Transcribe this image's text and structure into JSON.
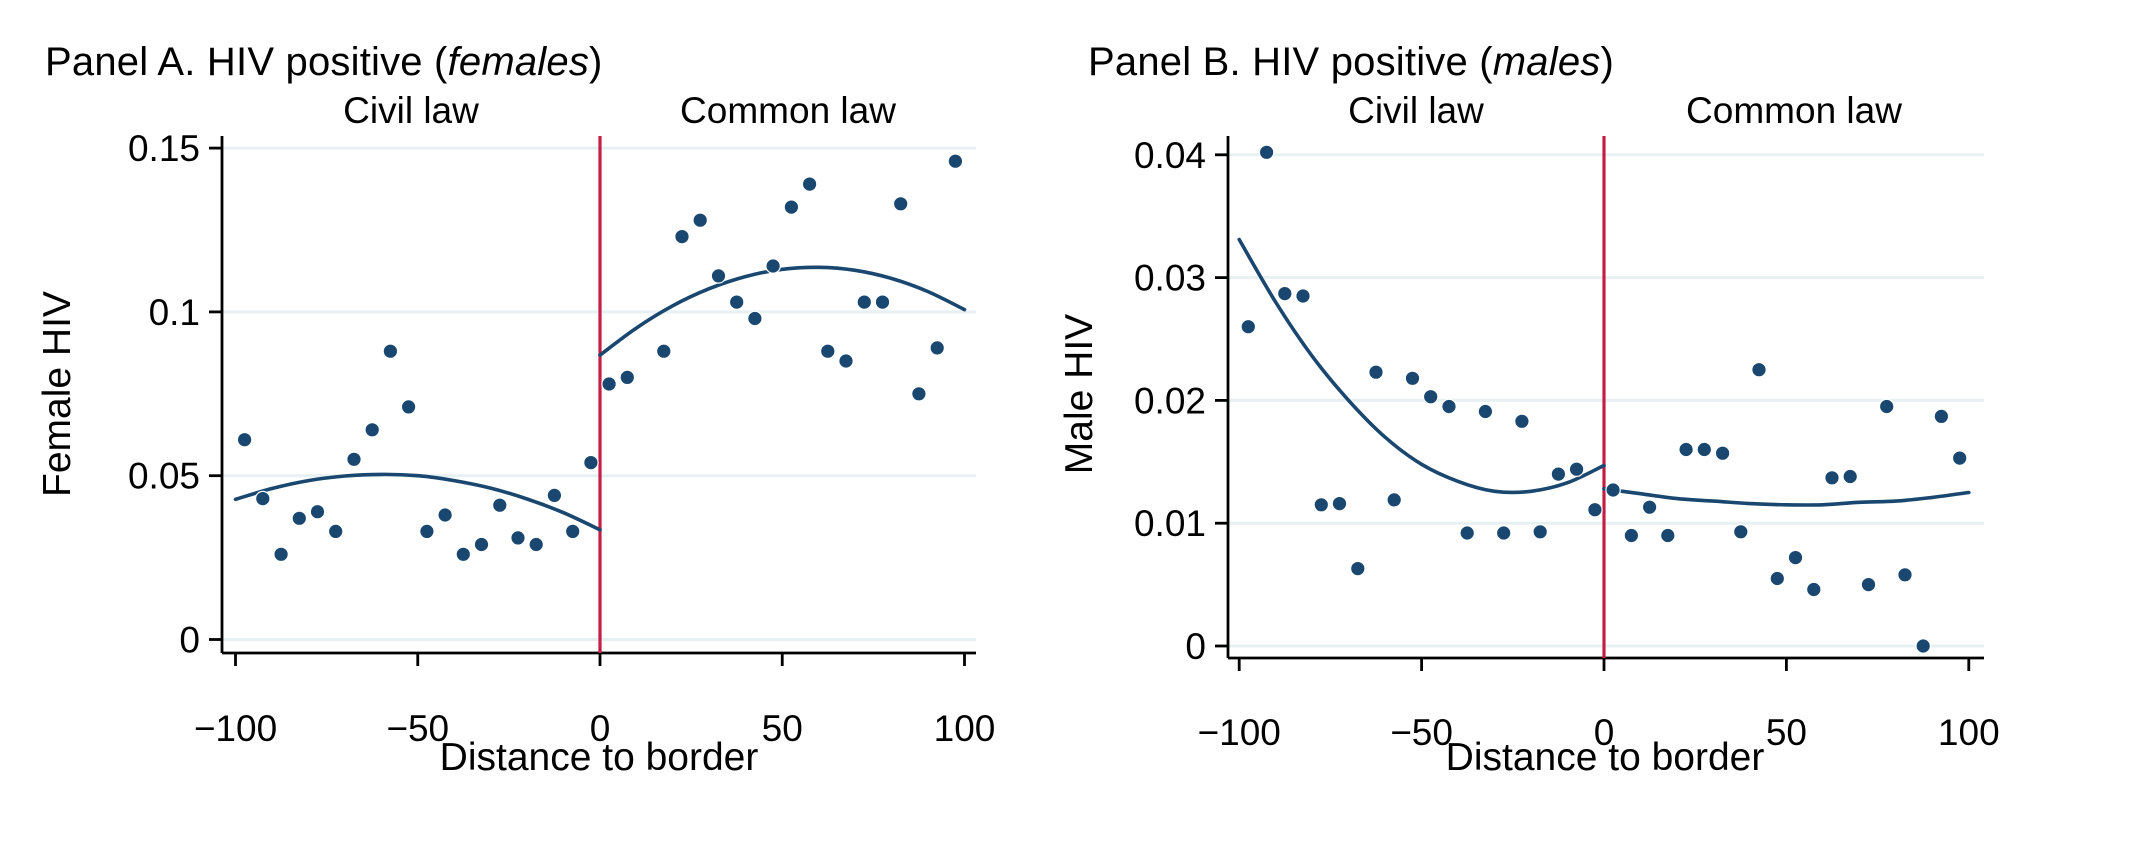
{
  "figure": {
    "background": "#ffffff",
    "colors": {
      "point": "#1a476f",
      "fit_line": "#1a476f",
      "cutoff_line": "#c51e45",
      "gridline": "#e8f1f2",
      "axis": "#000000",
      "text": "#000000"
    }
  },
  "chart_data": [
    {
      "type": "scatter",
      "title": "Panel A. HIV positive (females)",
      "title_prefix": "Panel A. HIV positive (",
      "title_italic": "females",
      "title_suffix": ")",
      "region_labels": [
        "Civil law",
        "Common law"
      ],
      "xlabel": "Distance to border",
      "ylabel": "Female HIV",
      "xlim": [
        -103.6,
        103.2
      ],
      "ylim": [
        -0.0041,
        0.1536
      ],
      "xticks": [
        -100,
        -50,
        0,
        50,
        100
      ],
      "xtick_labels": [
        "−100",
        "−50",
        "0",
        "50",
        "100"
      ],
      "yticks": [
        0,
        0.05,
        0.1,
        0.15
      ],
      "ytick_labels": [
        "0",
        "0.05",
        "0.1",
        "0.15"
      ],
      "grid": "horizontal",
      "legend": "none",
      "cutoff_x": 0,
      "series": [
        {
          "name": "Civil law bin means",
          "type": "scatter",
          "points": [
            [
              -97.5,
              0.061
            ],
            [
              -92.5,
              0.043
            ],
            [
              -87.5,
              0.026
            ],
            [
              -82.5,
              0.037
            ],
            [
              -77.5,
              0.039
            ],
            [
              -72.5,
              0.033
            ],
            [
              -67.5,
              0.055
            ],
            [
              -62.5,
              0.064
            ],
            [
              -57.5,
              0.088
            ],
            [
              -52.5,
              0.071
            ],
            [
              -47.5,
              0.033
            ],
            [
              -42.5,
              0.038
            ],
            [
              -37.5,
              0.026
            ],
            [
              -32.5,
              0.029
            ],
            [
              -27.5,
              0.041
            ],
            [
              -22.5,
              0.031
            ],
            [
              -17.5,
              0.029
            ],
            [
              -12.5,
              0.044
            ],
            [
              -7.5,
              0.033
            ],
            [
              -2.5,
              0.054
            ]
          ]
        },
        {
          "name": "Common law bin means",
          "type": "scatter",
          "points": [
            [
              2.5,
              0.078
            ],
            [
              7.5,
              0.08
            ],
            [
              17.5,
              0.088
            ],
            [
              22.5,
              0.123
            ],
            [
              27.5,
              0.128
            ],
            [
              32.5,
              0.111
            ],
            [
              37.5,
              0.103
            ],
            [
              42.5,
              0.098
            ],
            [
              47.5,
              0.114
            ],
            [
              52.5,
              0.132
            ],
            [
              57.5,
              0.139
            ],
            [
              62.5,
              0.088
            ],
            [
              67.5,
              0.085
            ],
            [
              72.5,
              0.103
            ],
            [
              77.5,
              0.103
            ],
            [
              82.5,
              0.133
            ],
            [
              87.5,
              0.075
            ],
            [
              92.5,
              0.089
            ],
            [
              97.5,
              0.146
            ]
          ]
        },
        {
          "name": "Civil law quadratic fit",
          "type": "line",
          "points": [
            [
              -100,
              0.0428
            ],
            [
              -90,
              0.0461
            ],
            [
              -80,
              0.0485
            ],
            [
              -70,
              0.0499
            ],
            [
              -60,
              0.0504
            ],
            [
              -50,
              0.05
            ],
            [
              -40,
              0.0485
            ],
            [
              -30,
              0.0462
            ],
            [
              -20,
              0.0429
            ],
            [
              -10,
              0.0387
            ],
            [
              0,
              0.0335
            ]
          ]
        },
        {
          "name": "Common law quadratic fit",
          "type": "line",
          "points": [
            [
              0,
              0.0868
            ],
            [
              10,
              0.0951
            ],
            [
              20,
              0.1019
            ],
            [
              30,
              0.1071
            ],
            [
              40,
              0.1108
            ],
            [
              50,
              0.113
            ],
            [
              60,
              0.1136
            ],
            [
              70,
              0.1127
            ],
            [
              80,
              0.1102
            ],
            [
              90,
              0.1062
            ],
            [
              100,
              0.1007
            ]
          ]
        }
      ]
    },
    {
      "type": "scatter",
      "title": "Panel B. HIV positive (males)",
      "title_prefix": "Panel B. HIV positive (",
      "title_italic": "males",
      "title_suffix": ")",
      "region_labels": [
        "Civil law",
        "Common law"
      ],
      "xlabel": "Distance to border",
      "ylabel": "Male HIV",
      "xlim": [
        -103.1,
        103.6
      ],
      "ylim": [
        -0.001,
        0.0416
      ],
      "xticks": [
        -100,
        -50,
        0,
        50,
        100
      ],
      "xtick_labels": [
        "−100",
        "−50",
        "0",
        "50",
        "100"
      ],
      "yticks": [
        0,
        0.01,
        0.02,
        0.03,
        0.04
      ],
      "ytick_labels": [
        "0",
        "0.01",
        "0.02",
        "0.03",
        "0.04"
      ],
      "grid": "horizontal",
      "legend": "none",
      "cutoff_x": 0,
      "series": [
        {
          "name": "Civil law bin means",
          "type": "scatter",
          "points": [
            [
              -97.5,
              0.026
            ],
            [
              -92.5,
              0.0402
            ],
            [
              -87.5,
              0.0287
            ],
            [
              -82.5,
              0.0285
            ],
            [
              -77.5,
              0.0115
            ],
            [
              -72.5,
              0.0116
            ],
            [
              -67.5,
              0.0063
            ],
            [
              -62.5,
              0.0223
            ],
            [
              -57.5,
              0.0119
            ],
            [
              -52.5,
              0.0218
            ],
            [
              -47.5,
              0.0203
            ],
            [
              -42.5,
              0.0195
            ],
            [
              -37.5,
              0.0092
            ],
            [
              -32.5,
              0.0191
            ],
            [
              -27.5,
              0.0092
            ],
            [
              -22.5,
              0.0183
            ],
            [
              -17.5,
              0.0093
            ],
            [
              -12.5,
              0.014
            ],
            [
              -7.5,
              0.0144
            ],
            [
              -2.5,
              0.0111
            ]
          ]
        },
        {
          "name": "Common law bin means",
          "type": "scatter",
          "points": [
            [
              2.5,
              0.0127
            ],
            [
              7.5,
              0.009
            ],
            [
              12.5,
              0.0113
            ],
            [
              17.5,
              0.009
            ],
            [
              22.5,
              0.016
            ],
            [
              27.5,
              0.016
            ],
            [
              32.5,
              0.0157
            ],
            [
              37.5,
              0.0093
            ],
            [
              42.5,
              0.0225
            ],
            [
              47.5,
              0.0055
            ],
            [
              52.5,
              0.0072
            ],
            [
              57.5,
              0.0046
            ],
            [
              62.5,
              0.0137
            ],
            [
              67.5,
              0.0138
            ],
            [
              72.5,
              0.005
            ],
            [
              77.5,
              0.0195
            ],
            [
              82.5,
              0.0058
            ],
            [
              87.5,
              0.0
            ],
            [
              92.5,
              0.0187
            ],
            [
              97.5,
              0.0153
            ]
          ]
        },
        {
          "name": "Civil law quadratic fit",
          "type": "line",
          "points": [
            [
              -100,
              0.0331
            ],
            [
              -90,
              0.028
            ],
            [
              -80,
              0.0236
            ],
            [
              -70,
              0.02
            ],
            [
              -60,
              0.017
            ],
            [
              -50,
              0.0148
            ],
            [
              -40,
              0.0134
            ],
            [
              -30,
              0.0126
            ],
            [
              -20,
              0.0126
            ],
            [
              -10,
              0.0133
            ],
            [
              0,
              0.0147
            ]
          ]
        },
        {
          "name": "Common law quadratic fit",
          "type": "line",
          "points": [
            [
              0,
              0.0128
            ],
            [
              10,
              0.0124
            ],
            [
              20,
              0.012
            ],
            [
              30,
              0.0118
            ],
            [
              40,
              0.0116
            ],
            [
              50,
              0.0115
            ],
            [
              60,
              0.0115
            ],
            [
              70,
              0.0117
            ],
            [
              80,
              0.0118
            ],
            [
              90,
              0.0121
            ],
            [
              100,
              0.0125
            ]
          ]
        }
      ]
    }
  ]
}
